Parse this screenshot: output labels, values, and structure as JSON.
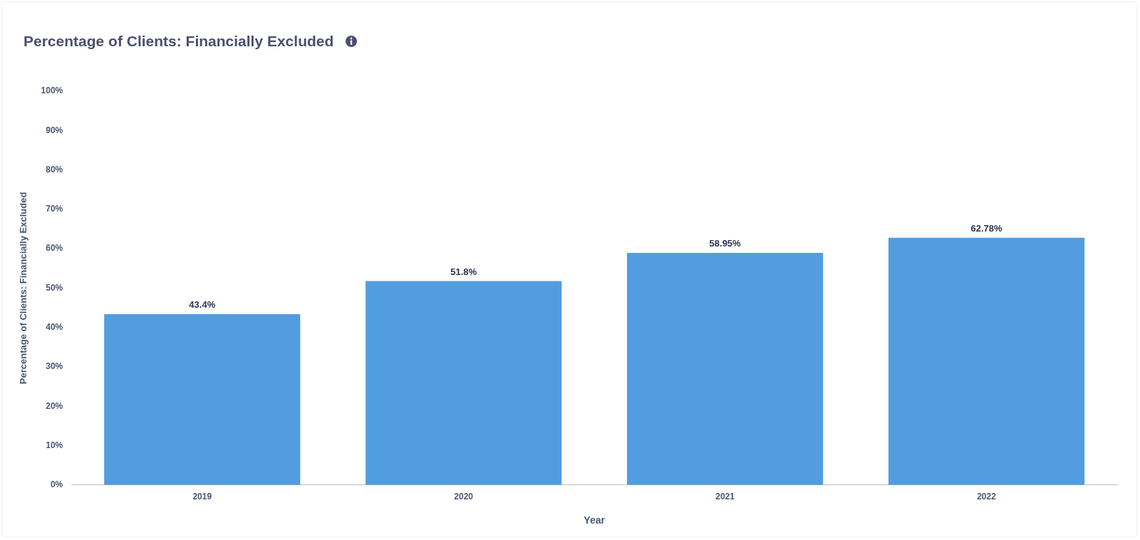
{
  "chart_data": {
    "type": "bar",
    "title": "Percentage of Clients: Financially Excluded",
    "xlabel": "Year",
    "ylabel": "Percentage of Clients: Financially Excluded",
    "categories": [
      "2019",
      "2020",
      "2021",
      "2022"
    ],
    "values": [
      43.4,
      51.8,
      58.95,
      62.78
    ],
    "value_labels": [
      "43.4%",
      "51.8%",
      "58.95%",
      "62.78%"
    ],
    "data_labels": true,
    "color": "#529ddf",
    "ylim": [
      0,
      100
    ],
    "yticks": [
      {
        "value": 0,
        "label": "0%"
      },
      {
        "value": 10,
        "label": "10%"
      },
      {
        "value": 20,
        "label": "20%"
      },
      {
        "value": 30,
        "label": "30%"
      },
      {
        "value": 40,
        "label": "40%"
      },
      {
        "value": 50,
        "label": "50%"
      },
      {
        "value": 60,
        "label": "60%"
      },
      {
        "value": 70,
        "label": "70%"
      },
      {
        "value": 80,
        "label": "80%"
      },
      {
        "value": 90,
        "label": "90%"
      },
      {
        "value": 100,
        "label": "100%"
      }
    ],
    "grid": false
  }
}
